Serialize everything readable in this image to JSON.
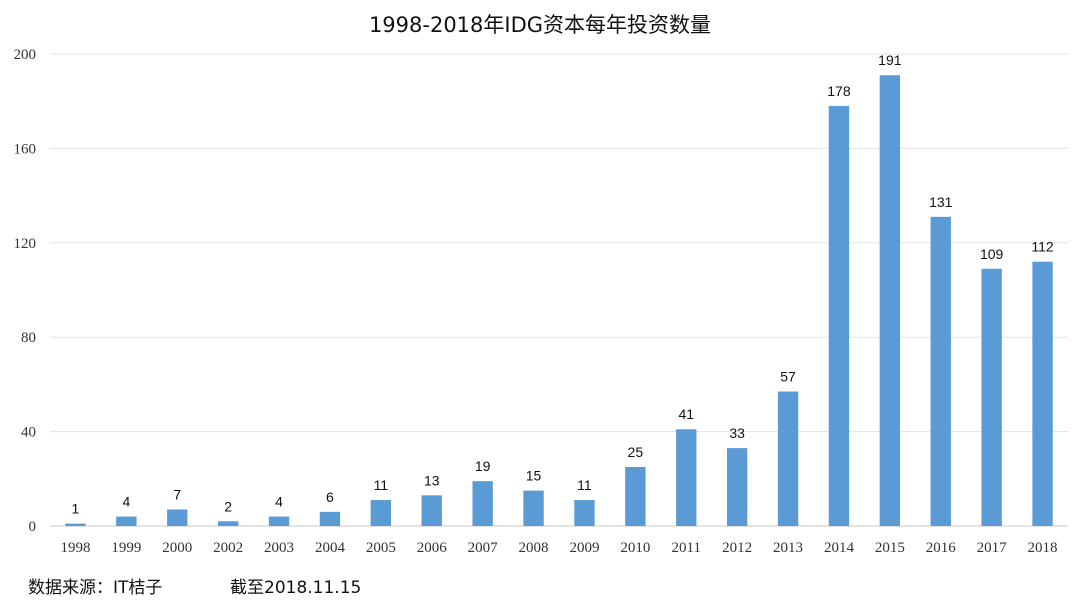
{
  "chart_data": {
    "type": "bar",
    "title": "1998-2018年IDG资本每年投资数量",
    "categories": [
      "1998",
      "1999",
      "2000",
      "2002",
      "2003",
      "2004",
      "2005",
      "2006",
      "2007",
      "2008",
      "2009",
      "2010",
      "2011",
      "2012",
      "2013",
      "2014",
      "2015",
      "2016",
      "2017",
      "2018"
    ],
    "values": [
      1,
      4,
      7,
      2,
      4,
      6,
      11,
      13,
      19,
      15,
      11,
      25,
      41,
      33,
      57,
      178,
      191,
      131,
      109,
      112
    ],
    "ylim": [
      0,
      200
    ],
    "yticks": [
      0,
      40,
      80,
      120,
      160,
      200
    ],
    "grid": true,
    "legend": "none",
    "bar_color": "#5b9bd5",
    "xlabel": "",
    "ylabel": ""
  },
  "footer": {
    "source": "数据来源：IT桔子",
    "date": "截至2018.11.15"
  }
}
